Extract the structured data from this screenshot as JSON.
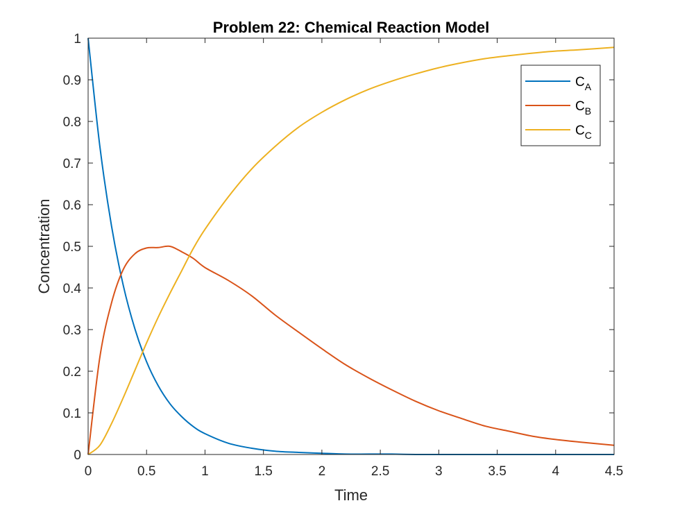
{
  "chart_data": {
    "type": "line",
    "title": "Problem 22: Chemical Reaction Model",
    "xlabel": "Time",
    "ylabel": "Concentration",
    "xlim": [
      0,
      4.5
    ],
    "ylim": [
      0,
      1
    ],
    "xticks": [
      0,
      0.5,
      1,
      1.5,
      2,
      2.5,
      3,
      3.5,
      4,
      4.5
    ],
    "xtick_labels": [
      "0",
      "0.5",
      "1",
      "1.5",
      "2",
      "2.5",
      "3",
      "3.5",
      "4",
      "4.5"
    ],
    "yticks": [
      0,
      0.1,
      0.2,
      0.3,
      0.4,
      0.5,
      0.6,
      0.7,
      0.8,
      0.9,
      1
    ],
    "ytick_labels": [
      "0",
      "0.1",
      "0.2",
      "0.3",
      "0.4",
      "0.5",
      "0.6",
      "0.7",
      "0.8",
      "0.9",
      "1"
    ],
    "grid": false,
    "legend_position": "top-right",
    "x": [
      0,
      0.1,
      0.2,
      0.3,
      0.4,
      0.5,
      0.6,
      0.7,
      0.8,
      0.9,
      1.0,
      1.2,
      1.4,
      1.6,
      1.8,
      2.0,
      2.2,
      2.4,
      2.6,
      2.8,
      3.0,
      3.2,
      3.4,
      3.6,
      3.8,
      4.0,
      4.2,
      4.5
    ],
    "series": [
      {
        "name": "A",
        "color": "#0072BD",
        "values": [
          1.0,
          0.741,
          0.549,
          0.407,
          0.302,
          0.223,
          0.165,
          0.122,
          0.091,
          0.067,
          0.05,
          0.027,
          0.015,
          0.008,
          0.005,
          0.003,
          0.001,
          0.001,
          0.001,
          0.0,
          0.0,
          0.0,
          0.0,
          0.0,
          0.0,
          0.0,
          0.0,
          0.0
        ]
      },
      {
        "name": "B",
        "color": "#D95319",
        "values": [
          0.0,
          0.233,
          0.364,
          0.444,
          0.482,
          0.496,
          0.497,
          0.5,
          0.487,
          0.471,
          0.449,
          0.418,
          0.381,
          0.335,
          0.294,
          0.254,
          0.216,
          0.184,
          0.155,
          0.128,
          0.105,
          0.086,
          0.068,
          0.056,
          0.044,
          0.036,
          0.03,
          0.022
        ]
      },
      {
        "name": "C",
        "color": "#EDB120",
        "values": [
          0.0,
          0.022,
          0.074,
          0.136,
          0.202,
          0.268,
          0.33,
          0.387,
          0.441,
          0.495,
          0.541,
          0.619,
          0.686,
          0.74,
          0.786,
          0.822,
          0.852,
          0.877,
          0.897,
          0.914,
          0.929,
          0.941,
          0.951,
          0.958,
          0.964,
          0.969,
          0.972,
          0.978
        ]
      }
    ]
  },
  "legend": {
    "base": "C",
    "items": [
      {
        "sub": "A",
        "color": "#0072BD"
      },
      {
        "sub": "B",
        "color": "#D95319"
      },
      {
        "sub": "C",
        "color": "#EDB120"
      }
    ]
  }
}
